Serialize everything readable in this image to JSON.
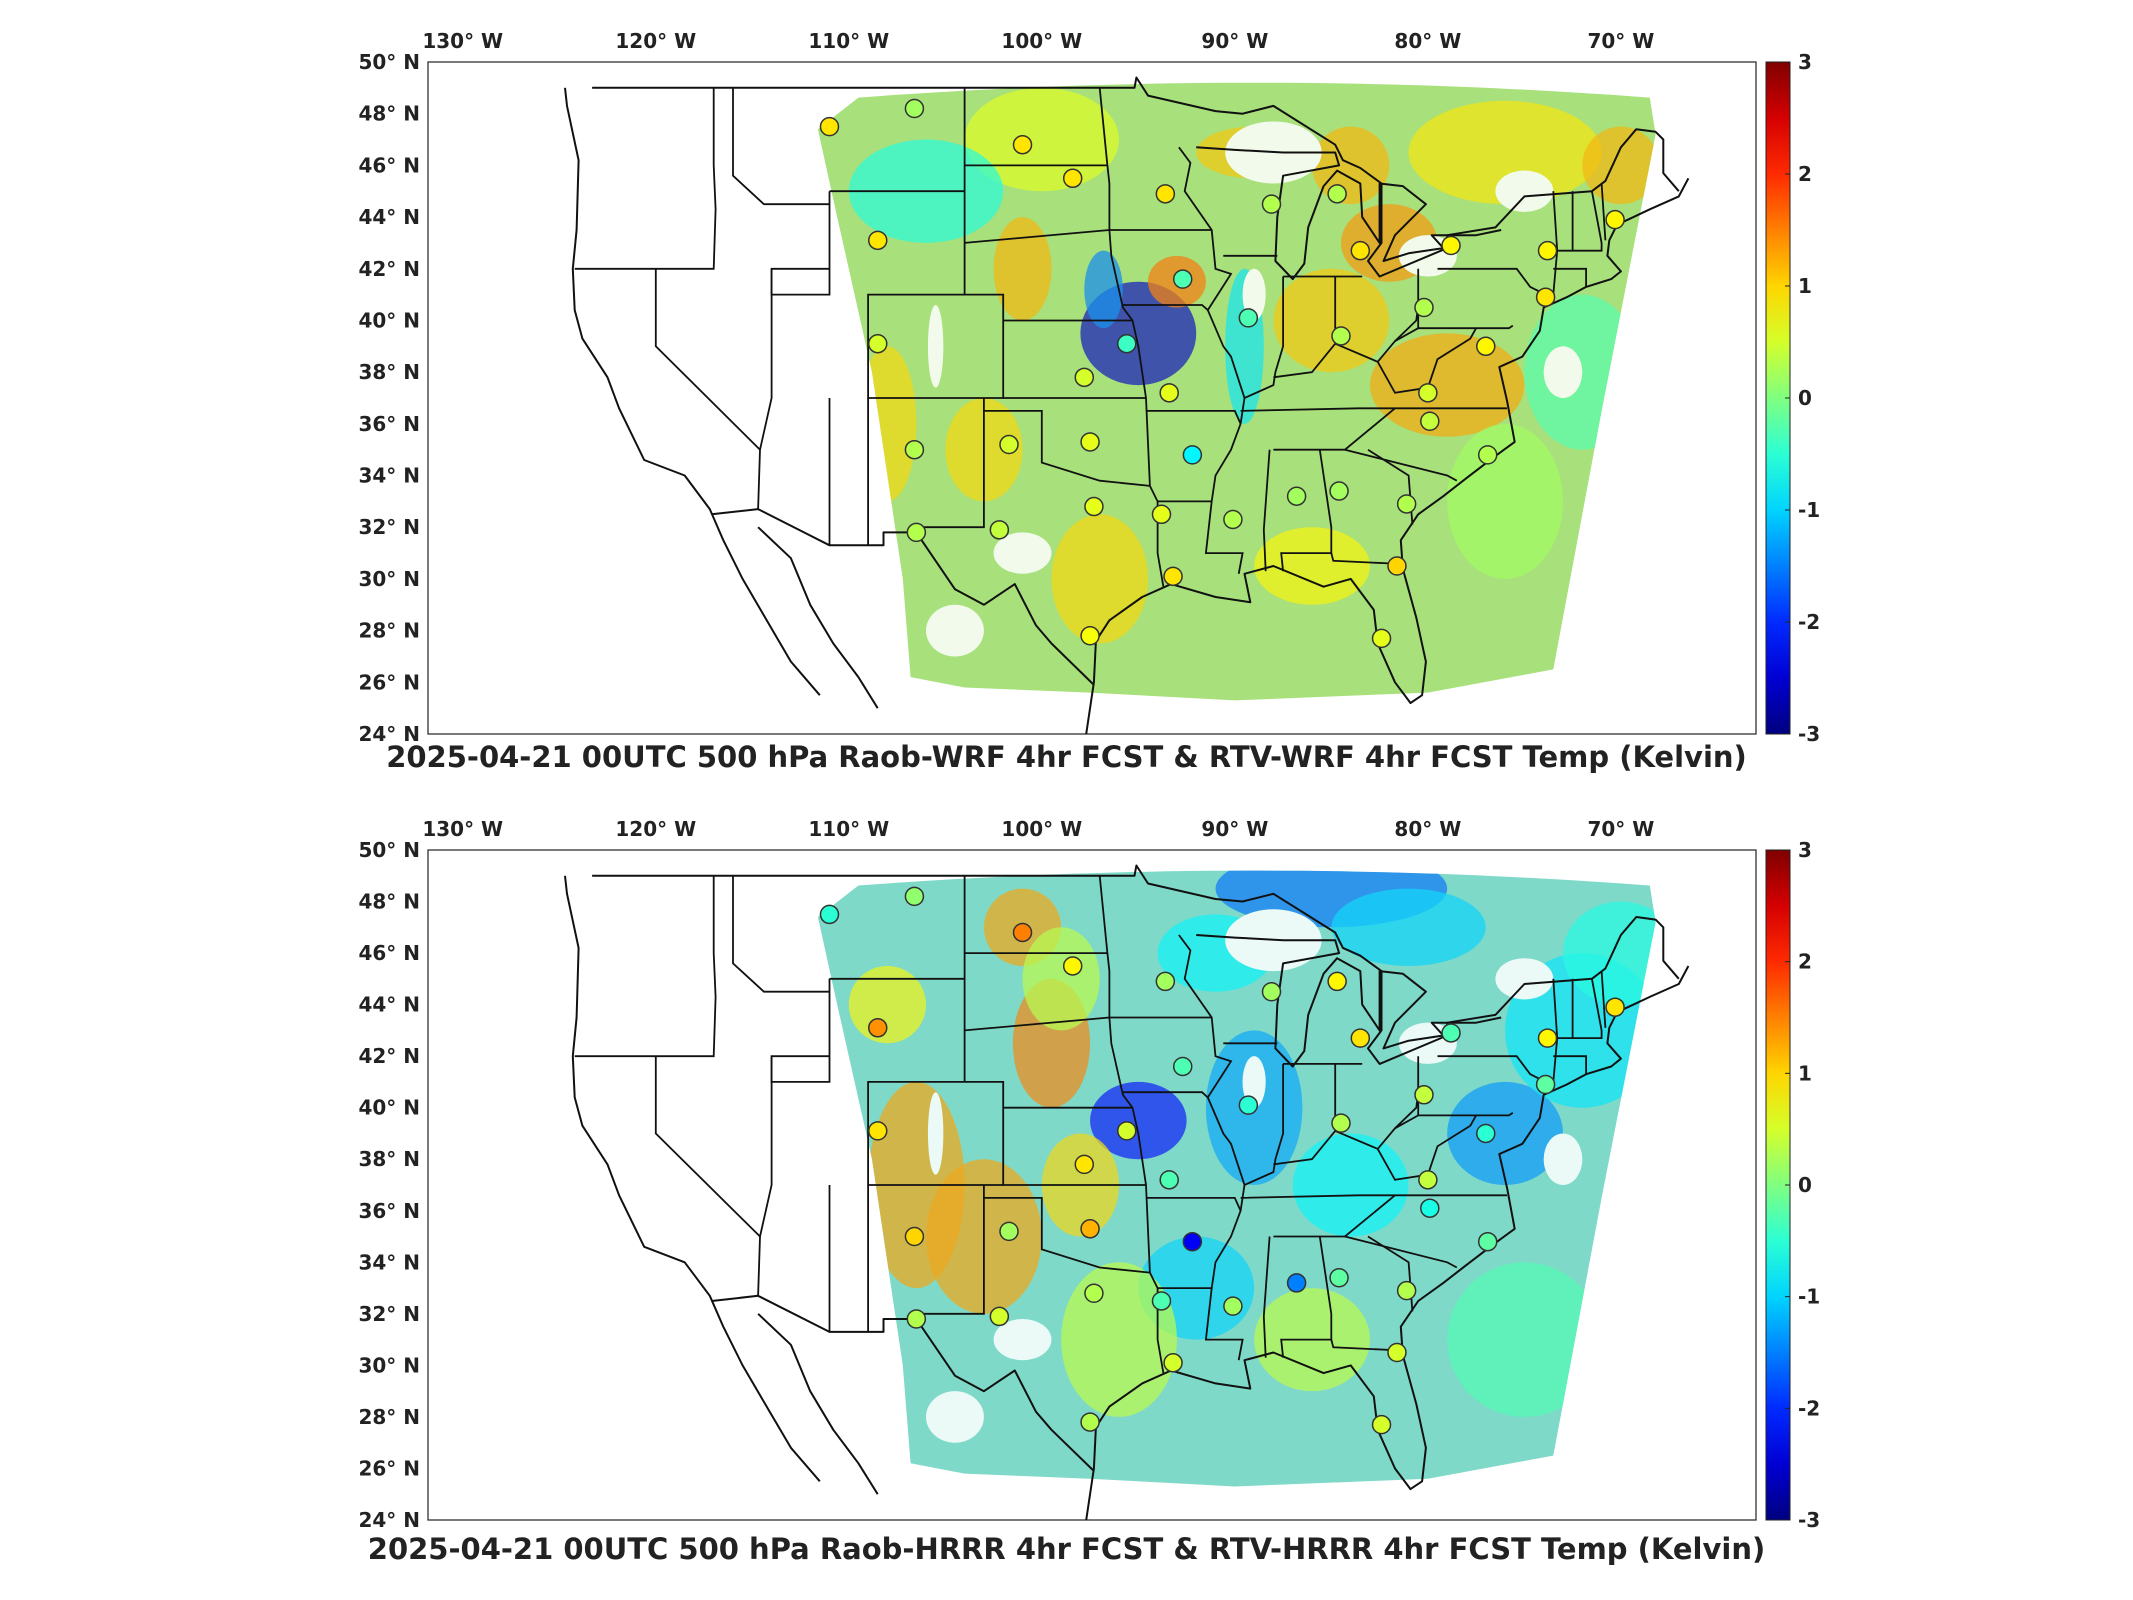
{
  "panels": [
    {
      "id": "wrf",
      "title": "2025-04-21 00UTC 500 hPa Raob-WRF 4hr FCST & RTV-WRF 4hr FCST Temp (Kelvin)",
      "longitude_labels": [
        "130° W",
        "120° W",
        "110° W",
        "100° W",
        "90° W",
        "80° W",
        "70° W"
      ],
      "latitude_labels": [
        "50° N",
        "48° N",
        "46° N",
        "44° N",
        "42° N",
        "40° N",
        "38° N",
        "36° N",
        "34° N",
        "32° N",
        "30° N",
        "28° N",
        "26° N",
        "24° N"
      ],
      "colorbar": {
        "min": -3,
        "max": 3,
        "ticks": [
          "3",
          "2",
          "1",
          "0",
          "-1",
          "-2",
          "-3"
        ]
      },
      "overall_tone": "yellow-green with scattered warm patches",
      "stations": [
        {
          "lon": -111.0,
          "lat": 47.5,
          "value": 0.9
        },
        {
          "lon": -106.6,
          "lat": 48.2,
          "value": 0.2
        },
        {
          "lon": -101.0,
          "lat": 46.8,
          "value": 0.9
        },
        {
          "lon": -98.4,
          "lat": 45.5,
          "value": 0.9
        },
        {
          "lon": -93.6,
          "lat": 44.9,
          "value": 0.9
        },
        {
          "lon": -88.1,
          "lat": 44.5,
          "value": 0.3
        },
        {
          "lon": -84.7,
          "lat": 44.9,
          "value": 0.3
        },
        {
          "lon": -83.5,
          "lat": 42.7,
          "value": 0.9
        },
        {
          "lon": -78.8,
          "lat": 42.9,
          "value": 0.8
        },
        {
          "lon": -73.8,
          "lat": 42.7,
          "value": 0.8
        },
        {
          "lon": -70.3,
          "lat": 43.9,
          "value": 0.8
        },
        {
          "lon": -108.5,
          "lat": 43.1,
          "value": 0.9
        },
        {
          "lon": -108.5,
          "lat": 39.1,
          "value": 0.5
        },
        {
          "lon": -97.8,
          "lat": 37.8,
          "value": 0.5
        },
        {
          "lon": -95.6,
          "lat": 39.1,
          "value": -0.4
        },
        {
          "lon": -92.7,
          "lat": 41.6,
          "value": -0.3
        },
        {
          "lon": -89.3,
          "lat": 40.1,
          "value": -0.3
        },
        {
          "lon": -84.5,
          "lat": 39.4,
          "value": 0.3
        },
        {
          "lon": -80.2,
          "lat": 40.5,
          "value": 0.3
        },
        {
          "lon": -77.0,
          "lat": 39.0,
          "value": 0.8
        },
        {
          "lon": -80.0,
          "lat": 37.2,
          "value": 0.5
        },
        {
          "lon": -79.9,
          "lat": 36.1,
          "value": 0.4
        },
        {
          "lon": -76.9,
          "lat": 34.8,
          "value": 0.3
        },
        {
          "lon": -81.1,
          "lat": 32.9,
          "value": 0.3
        },
        {
          "lon": -84.6,
          "lat": 33.4,
          "value": 0.2
        },
        {
          "lon": -86.8,
          "lat": 33.2,
          "value": 0.2
        },
        {
          "lon": -90.1,
          "lat": 32.3,
          "value": 0.3
        },
        {
          "lon": -92.2,
          "lat": 34.8,
          "value": -0.8
        },
        {
          "lon": -93.4,
          "lat": 37.2,
          "value": 0.6
        },
        {
          "lon": -97.5,
          "lat": 35.3,
          "value": 0.6
        },
        {
          "lon": -101.7,
          "lat": 35.2,
          "value": 0.5
        },
        {
          "lon": -106.6,
          "lat": 35.0,
          "value": 0.3
        },
        {
          "lon": -106.5,
          "lat": 31.8,
          "value": 0.3
        },
        {
          "lon": -102.2,
          "lat": 31.9,
          "value": 0.4
        },
        {
          "lon": -97.3,
          "lat": 32.8,
          "value": 0.6
        },
        {
          "lon": -93.8,
          "lat": 32.5,
          "value": 0.6
        },
        {
          "lon": -93.2,
          "lat": 30.1,
          "value": 0.9
        },
        {
          "lon": -97.5,
          "lat": 27.8,
          "value": 0.7
        },
        {
          "lon": -82.4,
          "lat": 27.7,
          "value": 0.6
        },
        {
          "lon": -81.6,
          "lat": 30.5,
          "value": 1.0
        },
        {
          "lon": -73.9,
          "lat": 40.9,
          "value": 0.9
        }
      ]
    },
    {
      "id": "hrrr",
      "title": "2025-04-21 00UTC 500 hPa Raob-HRRR 4hr FCST & RTV-HRRR 4hr FCST Temp (Kelvin)",
      "longitude_labels": [
        "130° W",
        "120° W",
        "110° W",
        "100° W",
        "90° W",
        "80° W",
        "70° W"
      ],
      "latitude_labels": [
        "50° N",
        "48° N",
        "46° N",
        "44° N",
        "42° N",
        "40° N",
        "38° N",
        "36° N",
        "34° N",
        "32° N",
        "30° N",
        "28° N",
        "26° N",
        "24° N"
      ],
      "colorbar": {
        "min": -3,
        "max": 3,
        "ticks": [
          "3",
          "2",
          "1",
          "0",
          "-1",
          "-2",
          "-3"
        ]
      },
      "overall_tone": "cyan-blue in north and east, warm orange in west plains",
      "stations": [
        {
          "lon": -111.0,
          "lat": 47.5,
          "value": -0.5
        },
        {
          "lon": -106.6,
          "lat": 48.2,
          "value": 0.1
        },
        {
          "lon": -101.0,
          "lat": 46.8,
          "value": 1.5
        },
        {
          "lon": -98.4,
          "lat": 45.5,
          "value": 0.8
        },
        {
          "lon": -93.6,
          "lat": 44.9,
          "value": 0.2
        },
        {
          "lon": -88.1,
          "lat": 44.5,
          "value": 0.2
        },
        {
          "lon": -84.7,
          "lat": 44.9,
          "value": 0.8
        },
        {
          "lon": -83.5,
          "lat": 42.7,
          "value": 0.9
        },
        {
          "lon": -78.8,
          "lat": 42.9,
          "value": -0.3
        },
        {
          "lon": -73.8,
          "lat": 42.7,
          "value": 0.8
        },
        {
          "lon": -70.3,
          "lat": 43.9,
          "value": 0.9
        },
        {
          "lon": -108.5,
          "lat": 43.1,
          "value": 1.4
        },
        {
          "lon": -108.5,
          "lat": 39.1,
          "value": 0.9
        },
        {
          "lon": -97.8,
          "lat": 37.8,
          "value": 0.9
        },
        {
          "lon": -95.6,
          "lat": 39.1,
          "value": 0.5
        },
        {
          "lon": -92.7,
          "lat": 41.6,
          "value": -0.3
        },
        {
          "lon": -89.3,
          "lat": 40.1,
          "value": -0.5
        },
        {
          "lon": -84.5,
          "lat": 39.4,
          "value": 0.3
        },
        {
          "lon": -80.2,
          "lat": 40.5,
          "value": 0.4
        },
        {
          "lon": -77.0,
          "lat": 39.0,
          "value": -0.5
        },
        {
          "lon": -80.0,
          "lat": 37.2,
          "value": 0.4
        },
        {
          "lon": -79.9,
          "lat": 36.1,
          "value": -0.6
        },
        {
          "lon": -76.9,
          "lat": 34.8,
          "value": -0.2
        },
        {
          "lon": -81.1,
          "lat": 32.9,
          "value": 0.3
        },
        {
          "lon": -84.6,
          "lat": 33.4,
          "value": -0.2
        },
        {
          "lon": -86.8,
          "lat": 33.2,
          "value": -1.5
        },
        {
          "lon": -90.1,
          "lat": 32.3,
          "value": 0.2
        },
        {
          "lon": -92.2,
          "lat": 34.8,
          "value": -2.3
        },
        {
          "lon": -93.4,
          "lat": 37.2,
          "value": -0.3
        },
        {
          "lon": -97.5,
          "lat": 35.3,
          "value": 1.2
        },
        {
          "lon": -101.7,
          "lat": 35.2,
          "value": 0.2
        },
        {
          "lon": -106.6,
          "lat": 35.0,
          "value": 1.0
        },
        {
          "lon": -106.5,
          "lat": 31.8,
          "value": 0.3
        },
        {
          "lon": -102.2,
          "lat": 31.9,
          "value": 0.5
        },
        {
          "lon": -97.3,
          "lat": 32.8,
          "value": 0.3
        },
        {
          "lon": -93.8,
          "lat": 32.5,
          "value": -0.3
        },
        {
          "lon": -93.2,
          "lat": 30.1,
          "value": 0.5
        },
        {
          "lon": -97.5,
          "lat": 27.8,
          "value": 0.3
        },
        {
          "lon": -82.4,
          "lat": 27.7,
          "value": 0.5
        },
        {
          "lon": -81.6,
          "lat": 30.5,
          "value": 0.5
        },
        {
          "lon": -73.9,
          "lat": 40.9,
          "value": -0.2
        }
      ]
    }
  ]
}
